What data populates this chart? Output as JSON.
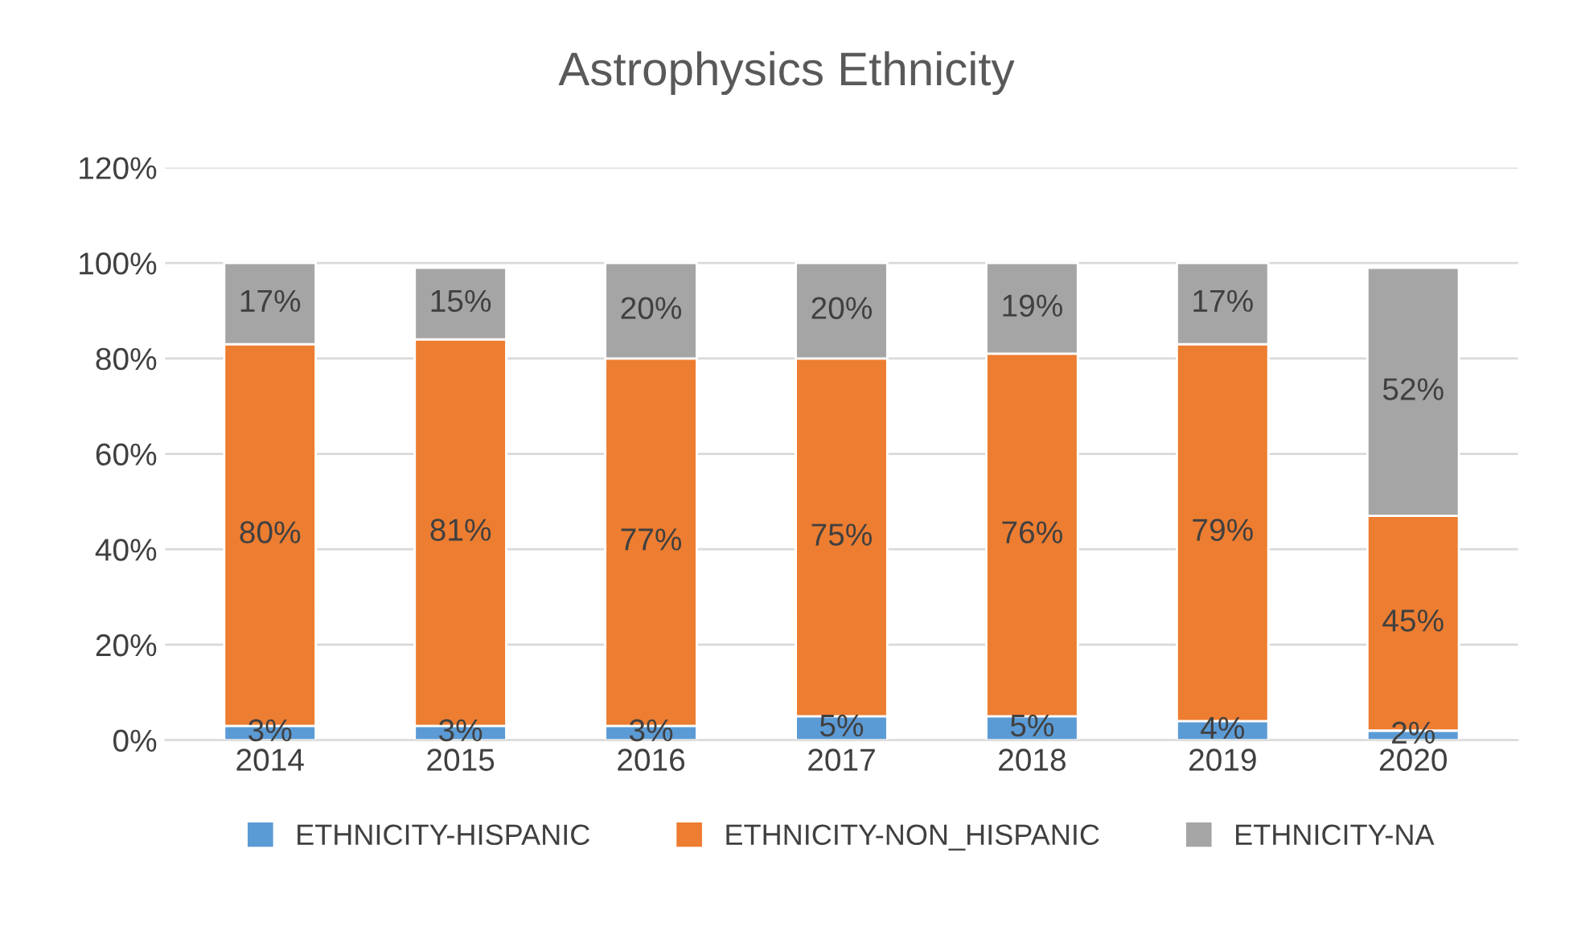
{
  "chart_data": {
    "type": "bar",
    "stacked": true,
    "title": "Astrophysics Ethnicity",
    "categories": [
      "2014",
      "2015",
      "2016",
      "2017",
      "2018",
      "2019",
      "2020"
    ],
    "series": [
      {
        "name": "ETHNICITY-HISPANIC",
        "color": "#5b9bd5",
        "values": [
          3,
          3,
          3,
          5,
          5,
          4,
          2
        ],
        "value_labels": [
          "3%",
          "3%",
          "3%",
          "5%",
          "5%",
          "4%",
          "2%"
        ]
      },
      {
        "name": "ETHNICITY-NON_HISPANIC",
        "color": "#ed7d31",
        "values": [
          80,
          81,
          77,
          75,
          76,
          79,
          45
        ],
        "value_labels": [
          "80%",
          "81%",
          "77%",
          "75%",
          "76%",
          "79%",
          "45%"
        ]
      },
      {
        "name": "ETHNICITY-NA",
        "color": "#a5a5a5",
        "values": [
          17,
          15,
          20,
          20,
          19,
          17,
          52
        ],
        "value_labels": [
          "17%",
          "15%",
          "20%",
          "20%",
          "19%",
          "17%",
          "52%"
        ]
      }
    ],
    "ylim": [
      0,
      120
    ],
    "yticks": [
      {
        "value": 0,
        "label": "0%"
      },
      {
        "value": 20,
        "label": "20%"
      },
      {
        "value": 40,
        "label": "40%"
      },
      {
        "value": 60,
        "label": "60%"
      },
      {
        "value": 80,
        "label": "80%"
      },
      {
        "value": 100,
        "label": "100%"
      },
      {
        "value": 120,
        "label": "120%"
      }
    ],
    "grid": "y",
    "legend": "bottom"
  }
}
